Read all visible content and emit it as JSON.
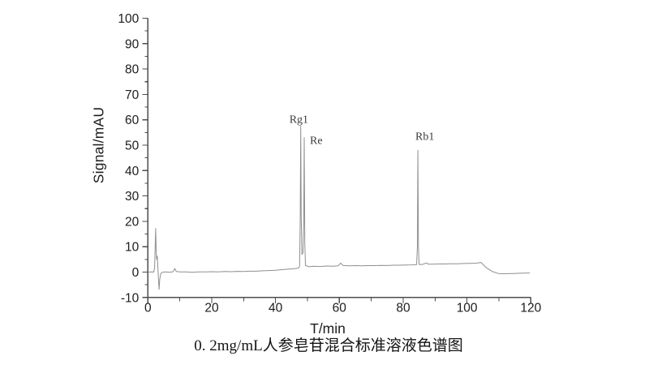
{
  "chart_data": {
    "type": "line",
    "title": "0. 2mg/mL人参皂苷混合标准溶液色谱图",
    "xlabel": "T/min",
    "ylabel": "Signal/mAU",
    "xlim": [
      0,
      120
    ],
    "ylim": [
      -10,
      100
    ],
    "x_ticks_major": [
      0,
      20,
      40,
      60,
      80,
      100,
      120
    ],
    "x_ticks_minor": [
      10,
      30,
      50,
      70,
      90,
      110
    ],
    "y_ticks_major": [
      -10,
      0,
      10,
      20,
      30,
      40,
      50,
      60,
      70,
      80,
      90,
      100
    ],
    "y_ticks_minor": [
      -5,
      5,
      15,
      25,
      35,
      45,
      55,
      65,
      75,
      85,
      95
    ],
    "grid": false,
    "legend": "none",
    "trace_color": "#8f8f8f",
    "axis_color": "#4d4d4d",
    "peaks": [
      {
        "label": "Rg1",
        "t": 47.9,
        "height": 57.5,
        "label_dx": -14,
        "label_dy": -4
      },
      {
        "label": "Re",
        "t": 49.0,
        "height": 53.0,
        "label_dx": 7,
        "label_dy": 8
      },
      {
        "label": "Rb1",
        "t": 84.6,
        "height": 48.0,
        "label_dx": -3,
        "label_dy": -13
      }
    ],
    "trace": [
      [
        0.35,
        0
      ],
      [
        1.2,
        0.1
      ],
      [
        1.85,
        0
      ],
      [
        2.1,
        1.8
      ],
      [
        2.45,
        17.2
      ],
      [
        2.6,
        8.5
      ],
      [
        2.75,
        5.0
      ],
      [
        2.95,
        6.3
      ],
      [
        3.1,
        2.5
      ],
      [
        3.3,
        -2.5
      ],
      [
        3.5,
        -6.8
      ],
      [
        3.72,
        -2.8
      ],
      [
        4.05,
        -0.6
      ],
      [
        4.5,
        -0.1
      ],
      [
        5.5,
        0.1
      ],
      [
        6.6,
        -0.05
      ],
      [
        7.8,
        0.1
      ],
      [
        8.45,
        1.4
      ],
      [
        8.9,
        0.25
      ],
      [
        10,
        0.05
      ],
      [
        12,
        0.1
      ],
      [
        14,
        -0.05
      ],
      [
        16,
        0.1
      ],
      [
        18,
        0.05
      ],
      [
        20,
        0.15
      ],
      [
        22,
        0.1
      ],
      [
        24,
        0.25
      ],
      [
        26,
        0.15
      ],
      [
        28,
        0.3
      ],
      [
        30,
        0.25
      ],
      [
        32,
        0.35
      ],
      [
        34,
        0.35
      ],
      [
        36,
        0.5
      ],
      [
        38,
        0.6
      ],
      [
        40,
        0.75
      ],
      [
        42,
        0.95
      ],
      [
        44,
        1.15
      ],
      [
        46,
        1.35
      ],
      [
        47.2,
        1.6
      ],
      [
        47.55,
        2.2
      ],
      [
        47.75,
        22
      ],
      [
        47.9,
        57.5
      ],
      [
        48.05,
        22
      ],
      [
        48.25,
        7
      ],
      [
        48.6,
        7.6
      ],
      [
        48.85,
        20
      ],
      [
        49.0,
        53
      ],
      [
        49.18,
        12
      ],
      [
        49.38,
        2.6
      ],
      [
        50.5,
        2.1
      ],
      [
        52,
        2.3
      ],
      [
        54,
        2.2
      ],
      [
        56,
        2.4
      ],
      [
        58,
        2.3
      ],
      [
        59.6,
        2.5
      ],
      [
        60.4,
        3.5
      ],
      [
        61.2,
        2.6
      ],
      [
        63,
        2.45
      ],
      [
        65,
        2.55
      ],
      [
        67,
        2.45
      ],
      [
        69,
        2.55
      ],
      [
        71,
        2.55
      ],
      [
        73,
        2.65
      ],
      [
        75,
        2.6
      ],
      [
        77,
        2.7
      ],
      [
        79,
        2.7
      ],
      [
        81,
        2.8
      ],
      [
        83,
        2.85
      ],
      [
        84.2,
        2.95
      ],
      [
        84.45,
        10
      ],
      [
        84.6,
        48
      ],
      [
        84.78,
        10
      ],
      [
        84.98,
        3.0
      ],
      [
        86,
        3.0
      ],
      [
        87.3,
        3.6
      ],
      [
        87.9,
        3.1
      ],
      [
        89,
        3.1
      ],
      [
        91,
        3.2
      ],
      [
        93,
        3.2
      ],
      [
        95,
        3.3
      ],
      [
        97,
        3.3
      ],
      [
        99,
        3.4
      ],
      [
        101,
        3.45
      ],
      [
        103,
        3.5
      ],
      [
        104.4,
        3.8
      ],
      [
        106,
        1.8
      ],
      [
        108,
        0.2
      ],
      [
        109.8,
        -0.55
      ],
      [
        111,
        -0.65
      ],
      [
        113,
        -0.6
      ],
      [
        115,
        -0.55
      ],
      [
        117,
        -0.45
      ],
      [
        119.6,
        -0.35
      ]
    ]
  }
}
